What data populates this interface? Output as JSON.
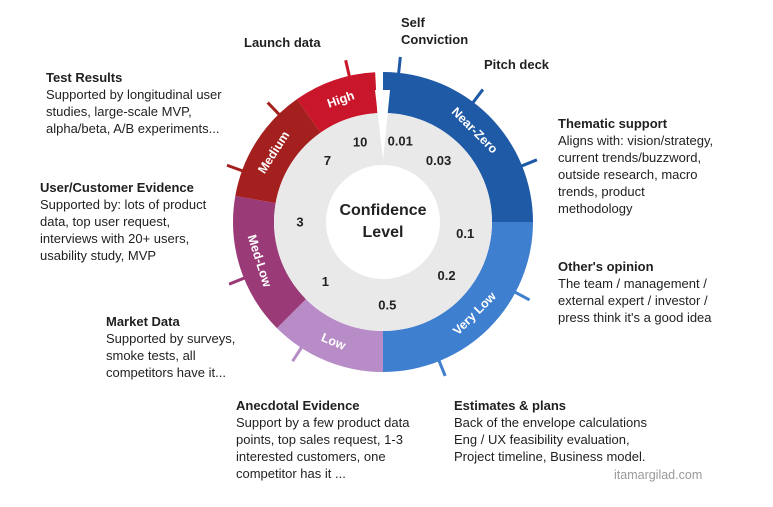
{
  "center": {
    "line1": "Confidence",
    "line2": "Level"
  },
  "segments": [
    {
      "label": "Near-Zero",
      "color": "#1f5aa6"
    },
    {
      "label": "Very Low",
      "color": "#3f7fcf"
    },
    {
      "label": "Low",
      "color": "#b88cc6"
    },
    {
      "label": "Med-Low",
      "color": "#9a3b77"
    },
    {
      "label": "Medium",
      "color": "#a4201e"
    },
    {
      "label": "High",
      "color": "#c9162a"
    }
  ],
  "values": [
    "0.01",
    "0.03",
    "0.1",
    "0.2",
    "0.5",
    "1",
    "3",
    "7",
    "10"
  ],
  "evidence": [
    {
      "title": "Self Conviction",
      "desc": ""
    },
    {
      "title": "Pitch deck",
      "desc": ""
    },
    {
      "title": "Thematic support",
      "desc": "Aligns with: vision/strategy, current trends/buzzword, outside research, macro trends, product methodology"
    },
    {
      "title": "Other's opinion",
      "desc": "The team / management / external expert /  investor / press think it's a good idea"
    },
    {
      "title": "Estimates & plans",
      "desc": "Back of the envelope calculations Eng / UX feasibility evaluation, Project timeline, Business model."
    },
    {
      "title": "Anecdotal Evidence",
      "desc": "Support by a few product data points, top sales request, 1-3 interested customers, one competitor has it ..."
    },
    {
      "title": "Market Data",
      "desc": "Supported by surveys, smoke tests, all competitors have it..."
    },
    {
      "title": "User/Customer Evidence",
      "desc": "Supported by: lots of product data, top user request, interviews with 20+ users, usability study, MVP"
    },
    {
      "title": "Test Results",
      "desc": "Supported by longitudinal user studies, large-scale MVP, alpha/beta, A/B experiments..."
    },
    {
      "title": "Launch data",
      "desc": ""
    }
  ],
  "credit": "itamargilad.com"
}
